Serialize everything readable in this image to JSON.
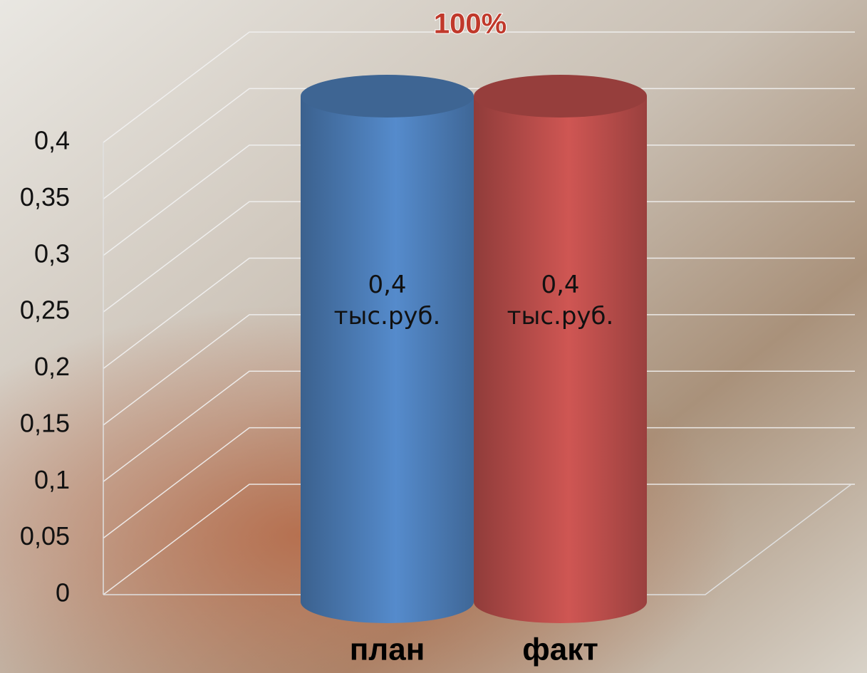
{
  "chart_data": {
    "type": "bar3d",
    "title": "100%",
    "categories": [
      "план",
      "факт"
    ],
    "series": [
      {
        "values": [
          0.4,
          0.4
        ],
        "value_labels": [
          "0,4 тыс.руб.",
          "0,4 тыс.руб."
        ],
        "colors": [
          "#4f81bd",
          "#c0504d"
        ]
      }
    ],
    "ylim": [
      0,
      0.4
    ],
    "yticks": [
      0,
      {
        "value": 0.05,
        "label": "0,05"
      },
      {
        "value": 0.1,
        "label": "0,1"
      },
      {
        "value": 0.15,
        "label": "0,15"
      },
      {
        "value": 0.2,
        "label": "0,2"
      },
      {
        "value": 0.25,
        "label": "0,25"
      },
      {
        "value": 0.3,
        "label": "0,3"
      },
      {
        "value": 0.35,
        "label": "0,35"
      },
      {
        "value": 0.4,
        "label": "0,4"
      }
    ],
    "grid": true
  }
}
